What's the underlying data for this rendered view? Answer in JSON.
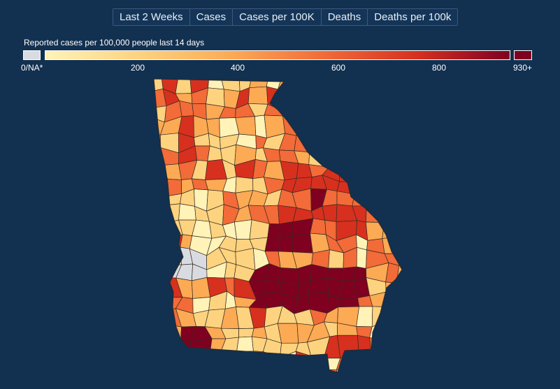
{
  "tabs": [
    {
      "label": "Last 2 Weeks"
    },
    {
      "label": "Cases"
    },
    {
      "label": "Cases per 100K"
    },
    {
      "label": "Deaths"
    },
    {
      "label": "Deaths per 100k"
    }
  ],
  "legend": {
    "title": "Reported cases per 100,000 people last 14 days",
    "na_label": "0/NA*",
    "max_label": "930+",
    "ticks": [
      {
        "label": "200",
        "value": 200
      },
      {
        "label": "400",
        "value": 400
      },
      {
        "label": "600",
        "value": 600
      },
      {
        "label": "800",
        "value": 800
      }
    ],
    "domain": [
      0,
      930
    ],
    "colors": {
      "na": "#d8dce2",
      "low": "#fff3b8",
      "mid_low": "#fdd37f",
      "mid": "#fdaa54",
      "mid_high": "#f26b38",
      "high": "#d7301f",
      "max": "#7f0020",
      "background": "#12304f"
    }
  }
}
